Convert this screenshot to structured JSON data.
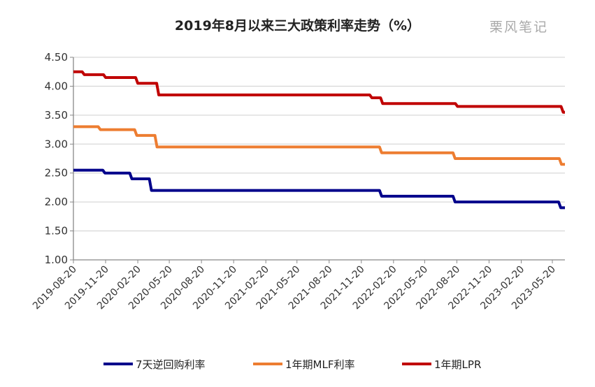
{
  "chart_data": {
    "type": "line",
    "title": "2019年8月以来三大政策利率走势（%）",
    "watermark": "栗风笔记",
    "xlabel": "",
    "ylabel": "",
    "ylim": [
      1.0,
      4.5
    ],
    "yticks": [
      "1.00",
      "1.50",
      "2.00",
      "2.50",
      "3.00",
      "3.50",
      "4.00",
      "4.50"
    ],
    "xticks": [
      "2019-08-20",
      "2019-11-20",
      "2020-02-20",
      "2020-05-20",
      "2020-08-20",
      "2020-11-20",
      "2021-02-20",
      "2021-05-20",
      "2021-08-20",
      "2021-11-20",
      "2022-02-20",
      "2022-05-20",
      "2022-08-20",
      "2022-11-20",
      "2023-02-20",
      "2023-05-20"
    ],
    "xrange": [
      "2019-08-20",
      "2023-06-25"
    ],
    "grid": true,
    "legend_position": "bottom",
    "step": true,
    "series": [
      {
        "name": "7天逆回购利率",
        "color": "#00008B",
        "points": [
          [
            "2019-08-20",
            2.55
          ],
          [
            "2019-11-18",
            2.5
          ],
          [
            "2020-02-03",
            2.4
          ],
          [
            "2020-03-30",
            2.2
          ],
          [
            "2022-01-17",
            2.1
          ],
          [
            "2022-08-15",
            2.0
          ],
          [
            "2023-06-13",
            1.9
          ]
        ]
      },
      {
        "name": "1年期MLF利率",
        "color": "#ED7D31",
        "points": [
          [
            "2019-08-20",
            3.3
          ],
          [
            "2019-11-05",
            3.25
          ],
          [
            "2020-02-17",
            3.15
          ],
          [
            "2020-04-15",
            2.95
          ],
          [
            "2022-01-17",
            2.85
          ],
          [
            "2022-08-15",
            2.75
          ],
          [
            "2023-06-15",
            2.65
          ]
        ]
      },
      {
        "name": "1年期LPR",
        "color": "#C00000",
        "points": [
          [
            "2019-08-20",
            4.25
          ],
          [
            "2019-09-20",
            4.2
          ],
          [
            "2019-11-20",
            4.15
          ],
          [
            "2020-02-20",
            4.05
          ],
          [
            "2020-04-20",
            3.85
          ],
          [
            "2021-12-20",
            3.8
          ],
          [
            "2022-01-20",
            3.7
          ],
          [
            "2022-08-22",
            3.65
          ],
          [
            "2023-06-20",
            3.55
          ]
        ]
      }
    ]
  }
}
